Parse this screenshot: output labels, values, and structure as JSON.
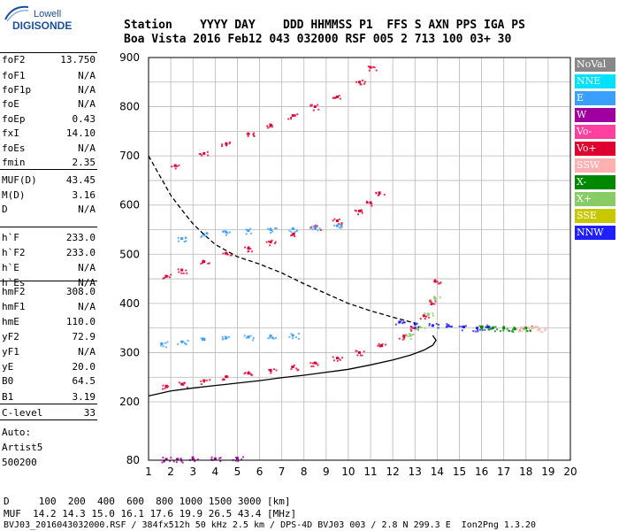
{
  "logo": {
    "word": "Lowell",
    "brand": "DIGISONDE"
  },
  "header": {
    "labels": "Station    YYYY DAY    DDD HHMMSS P1  FFS S AXN PPS IGA PS",
    "values": "Boa Vista 2016 Feb12 043 032000 RSF 005 2 713 100 03+ 30"
  },
  "params": [
    {
      "name": "foF2",
      "value": "13.750"
    },
    {
      "name": "foF1",
      "value": "N/A"
    },
    {
      "name": "foF1p",
      "value": "N/A"
    },
    {
      "name": "foE",
      "value": "N/A"
    },
    {
      "name": "foEp",
      "value": "0.43"
    },
    {
      "name": "fxI",
      "value": "14.10"
    },
    {
      "name": "foEs",
      "value": "N/A"
    },
    {
      "name": "fmin",
      "value": "2.35"
    },
    {
      "name": "MUF(D)",
      "value": "43.45"
    },
    {
      "name": "M(D)",
      "value": "3.16"
    },
    {
      "name": "D",
      "value": "N/A"
    },
    {
      "name": "h`F",
      "value": "233.0"
    },
    {
      "name": "h`F2",
      "value": "233.0"
    },
    {
      "name": "h`E",
      "value": "N/A"
    },
    {
      "name": "h`Es",
      "value": "N/A"
    },
    {
      "name": "hmF2",
      "value": "308.0"
    },
    {
      "name": "hmF1",
      "value": "N/A"
    },
    {
      "name": "hmE",
      "value": "110.0"
    },
    {
      "name": "yF2",
      "value": "72.9"
    },
    {
      "name": "yF1",
      "value": "N/A"
    },
    {
      "name": "yE",
      "value": "20.0"
    },
    {
      "name": "B0",
      "value": "64.5"
    },
    {
      "name": "B1",
      "value": "3.19"
    },
    {
      "name": "C-level",
      "value": "33"
    }
  ],
  "auto": {
    "line1": "Auto:",
    "line2": "Artist5",
    "line3": "500200"
  },
  "footer": {
    "line1": "D     100  200  400  600  800 1000 1500 3000 [km]",
    "line2": "MUF  14.2 14.3 15.0 16.1 17.6 19.9 26.5 43.4 [MHz]",
    "line3": "BVJ03_2016043032000.RSF / 384fx512h 50 kHz 2.5 km / DPS-4D BVJ03 003 / 2.8 N 299.3 E  Ion2Png 1.3.20"
  },
  "legend": [
    {
      "label": "NoVal",
      "color": "#888888"
    },
    {
      "label": "NNE",
      "color": "#00e0ff"
    },
    {
      "label": "E",
      "color": "#3aa0ff"
    },
    {
      "label": "W",
      "color": "#a000a0"
    },
    {
      "label": "Vo-",
      "color": "#ff40a0"
    },
    {
      "label": "Vo+",
      "color": "#e00030"
    },
    {
      "label": "SSW",
      "color": "#ffb0b0"
    },
    {
      "label": "X-",
      "color": "#008800"
    },
    {
      "label": "X+",
      "color": "#88cc66"
    },
    {
      "label": "SSE",
      "color": "#c8c800"
    },
    {
      "label": "NNW",
      "color": "#2020ff"
    }
  ],
  "chart_data": {
    "type": "scatter",
    "title": "",
    "xlabel": "",
    "ylabel": "",
    "xlim": [
      1,
      20
    ],
    "ylim": [
      80,
      900
    ],
    "x_ticks": [
      1,
      2,
      3,
      4,
      5,
      6,
      7,
      8,
      9,
      10,
      11,
      12,
      13,
      14,
      15,
      16,
      17,
      18,
      19,
      20
    ],
    "y_ticks": [
      80,
      200,
      300,
      400,
      500,
      600,
      700,
      800,
      900
    ],
    "y_tick_values": [
      200,
      300,
      400,
      500,
      600,
      700,
      800,
      900
    ],
    "grid": true,
    "legend_position": "right",
    "series": [
      {
        "kind": "points",
        "color": "#e00030",
        "x": [
          1.8,
          2.5,
          3.5,
          4.5,
          5.5,
          6.5,
          7.5,
          8.5,
          9.5,
          10.5,
          11.5,
          12.5,
          13.0,
          13.4,
          13.7,
          13.9
        ],
        "y": [
          232,
          236,
          243,
          251,
          258,
          264,
          271,
          279,
          289,
          300,
          314,
          333,
          350,
          375,
          405,
          445
        ]
      },
      {
        "kind": "points",
        "color": "#88cc66",
        "x": [
          12.8,
          13.2,
          13.6,
          13.9
        ],
        "y": [
          335,
          352,
          378,
          410
        ]
      },
      {
        "kind": "points",
        "color": "#e00030",
        "x": [
          1.8,
          2.5,
          3.5,
          4.5,
          5.5,
          6.5,
          7.5,
          8.5,
          9.5,
          10.5,
          11.0,
          11.4
        ],
        "y": [
          455,
          468,
          485,
          502,
          512,
          525,
          540,
          555,
          568,
          588,
          605,
          625
        ]
      },
      {
        "kind": "points",
        "color": "#e00030",
        "x": [
          2.2,
          3.5,
          4.5,
          5.5,
          6.5,
          7.5,
          8.5,
          9.5,
          10.5,
          11.0
        ],
        "y": [
          680,
          705,
          725,
          745,
          762,
          782,
          800,
          820,
          850,
          880
        ]
      },
      {
        "kind": "points",
        "color": "#3aa0ff",
        "x": [
          1.6,
          2.5,
          3.5,
          4.5,
          5.5,
          6.5,
          7.5
        ],
        "y": [
          318,
          322,
          327,
          330,
          332,
          334,
          335
        ]
      },
      {
        "kind": "points",
        "color": "#3aa0ff",
        "x": [
          2.5,
          3.5,
          4.5,
          5.5,
          6.5,
          7.5,
          8.5,
          9.5
        ],
        "y": [
          532,
          540,
          545,
          548,
          550,
          552,
          555,
          558
        ]
      },
      {
        "kind": "points",
        "color": "#2020ff",
        "x": [
          12.3,
          13.0,
          13.8,
          14.5,
          15.2,
          15.8,
          16.3
        ],
        "y": [
          362,
          358,
          355,
          355,
          352,
          350,
          352
        ]
      },
      {
        "kind": "points",
        "color": "#008800",
        "x": [
          16.0,
          16.5,
          17.0,
          17.5,
          18.0
        ],
        "y": [
          352,
          350,
          350,
          348,
          350
        ]
      },
      {
        "kind": "points",
        "color": "#ffb0b0",
        "x": [
          17.8,
          18.3,
          18.6
        ],
        "y": [
          350,
          350,
          348
        ]
      },
      {
        "kind": "points",
        "color": "#a000a0",
        "x": [
          1.8,
          2.3,
          3.0,
          4.0,
          5.0
        ],
        "y": [
          82,
          82,
          83,
          83,
          84
        ]
      },
      {
        "kind": "line",
        "style": "solid",
        "color": "#000000",
        "x": [
          1,
          2,
          3,
          4,
          5,
          6,
          7,
          8,
          9,
          10,
          11,
          12,
          12.8,
          13.4,
          13.8,
          13.95,
          13.8
        ],
        "y": [
          212,
          222,
          228,
          233,
          238,
          243,
          249,
          254,
          260,
          266,
          275,
          285,
          295,
          305,
          315,
          325,
          335
        ]
      },
      {
        "kind": "line",
        "style": "dashed",
        "color": "#000000",
        "x": [
          1,
          1.5,
          2,
          2.5,
          3,
          3.5,
          4,
          5,
          6,
          7,
          8,
          9,
          10,
          11,
          12,
          13
        ],
        "y": [
          700,
          660,
          620,
          590,
          562,
          540,
          520,
          495,
          480,
          462,
          440,
          420,
          400,
          385,
          372,
          360
        ]
      }
    ]
  }
}
